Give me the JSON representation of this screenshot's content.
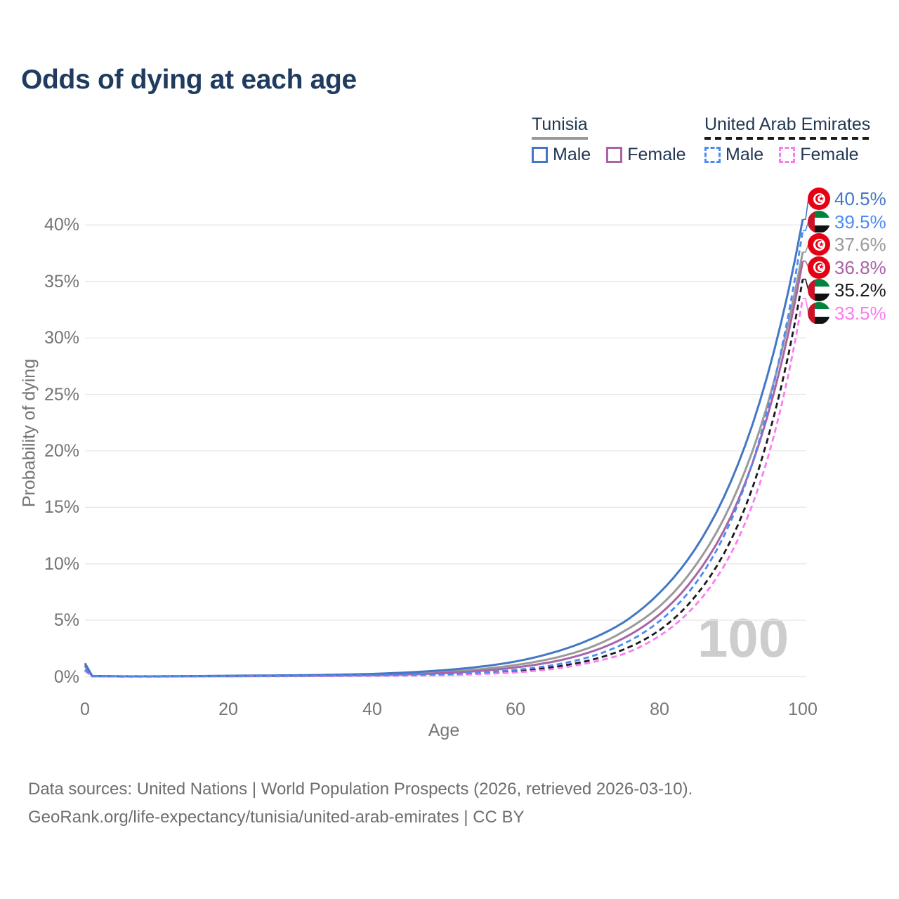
{
  "title": "Odds of dying at each age",
  "legend": {
    "groups": [
      {
        "name": "Tunisia",
        "line_style": "solid",
        "line_color": "#9a9a9a",
        "items": [
          {
            "label": "Male",
            "color": "#4377c4",
            "dashed": false
          },
          {
            "label": "Female",
            "color": "#aa64a6",
            "dashed": false
          }
        ]
      },
      {
        "name": "United Arab Emirates",
        "line_style": "dashed",
        "line_color": "#1a1a1a",
        "items": [
          {
            "label": "Male",
            "color": "#4b8bf4",
            "dashed": true
          },
          {
            "label": "Female",
            "color": "#fb7bf2",
            "dashed": true
          }
        ]
      }
    ]
  },
  "axes": {
    "y_title": "Probability of dying",
    "x_title": "Age",
    "y_ticks": [
      {
        "v": 0,
        "label": "0%"
      },
      {
        "v": 5,
        "label": "5%"
      },
      {
        "v": 10,
        "label": "10%"
      },
      {
        "v": 15,
        "label": "15%"
      },
      {
        "v": 20,
        "label": "20%"
      },
      {
        "v": 25,
        "label": "25%"
      },
      {
        "v": 30,
        "label": "30%"
      },
      {
        "v": 35,
        "label": "35%"
      },
      {
        "v": 40,
        "label": "40%"
      }
    ],
    "x_ticks": [
      {
        "v": 0,
        "label": "0"
      },
      {
        "v": 20,
        "label": "20"
      },
      {
        "v": 40,
        "label": "40"
      },
      {
        "v": 60,
        "label": "60"
      },
      {
        "v": 80,
        "label": "80"
      },
      {
        "v": 100,
        "label": "100"
      }
    ]
  },
  "watermark": "100",
  "end_labels": [
    {
      "series_id": "tunisia-male",
      "text": "40.5%",
      "color": "#4377c4",
      "flag": "tn"
    },
    {
      "series_id": "uae-male",
      "text": "39.5%",
      "color": "#4b8bf4",
      "flag": "ae"
    },
    {
      "series_id": "tunisia-both",
      "text": "37.6%",
      "color": "#9a9a9a",
      "flag": "tn"
    },
    {
      "series_id": "tunisia-female",
      "text": "36.8%",
      "color": "#aa64a6",
      "flag": "tn"
    },
    {
      "series_id": "uae-both",
      "text": "35.2%",
      "color": "#1a1a1a",
      "flag": "ae"
    },
    {
      "series_id": "uae-female",
      "text": "33.5%",
      "color": "#fb7bf2",
      "flag": "ae"
    }
  ],
  "flags": {
    "tn": {
      "red": "#e70013",
      "white": "#ffffff"
    },
    "ae": {
      "red": "#cd1126",
      "green": "#00843d",
      "white": "#ffffff",
      "black": "#111111"
    }
  },
  "footer": {
    "line1": "Data sources: United Nations | World Population Prospects (2026, retrieved 2026-03-10).",
    "line2": "GeoRank.org/life-expectancy/tunisia/united-arab-emirates | CC BY"
  },
  "chart_data": {
    "type": "line",
    "title": "Odds of dying at each age",
    "xlabel": "Age",
    "ylabel": "Probability of dying",
    "xlim": [
      0,
      100
    ],
    "ylim": [
      0,
      42
    ],
    "grid": true,
    "legend_position": "top-right",
    "unit": "percent",
    "x": [
      0,
      1,
      5,
      10,
      15,
      20,
      25,
      30,
      35,
      40,
      45,
      50,
      55,
      60,
      65,
      70,
      75,
      80,
      85,
      90,
      95,
      100
    ],
    "series": [
      {
        "id": "tunisia-both",
        "name": "Tunisia (both sexes)",
        "color": "#9a9a9a",
        "dashed": false,
        "values": [
          1.05,
          0.06,
          0.035,
          0.03,
          0.05,
          0.07,
          0.09,
          0.11,
          0.14,
          0.19,
          0.28,
          0.43,
          0.66,
          1.03,
          1.6,
          2.5,
          4.0,
          6.2,
          9.8,
          15.3,
          23.9,
          37.6
        ]
      },
      {
        "id": "tunisia-female",
        "name": "Tunisia Female",
        "color": "#aa64a6",
        "dashed": false,
        "values": [
          0.95,
          0.05,
          0.03,
          0.03,
          0.04,
          0.05,
          0.06,
          0.08,
          0.1,
          0.13,
          0.2,
          0.32,
          0.51,
          0.82,
          1.3,
          2.1,
          3.4,
          5.5,
          8.9,
          14.2,
          22.9,
          36.8
        ]
      },
      {
        "id": "tunisia-male",
        "name": "Tunisia Male",
        "color": "#4377c4",
        "dashed": false,
        "values": [
          1.2,
          0.07,
          0.04,
          0.04,
          0.06,
          0.09,
          0.11,
          0.13,
          0.18,
          0.25,
          0.38,
          0.58,
          0.88,
          1.35,
          2.1,
          3.2,
          4.8,
          7.4,
          11.3,
          17.3,
          26.5,
          40.5
        ]
      },
      {
        "id": "uae-both",
        "name": "United Arab Emirates (both sexes)",
        "color": "#1a1a1a",
        "dashed": true,
        "values": [
          0.58,
          0.04,
          0.02,
          0.02,
          0.03,
          0.05,
          0.06,
          0.07,
          0.08,
          0.1,
          0.13,
          0.18,
          0.29,
          0.48,
          0.83,
          1.4,
          2.4,
          4.1,
          7.1,
          12.1,
          20.8,
          35.2
        ]
      },
      {
        "id": "uae-female",
        "name": "United Arab Emirates Female",
        "color": "#fb7bf2",
        "dashed": true,
        "values": [
          0.52,
          0.03,
          0.02,
          0.02,
          0.02,
          0.03,
          0.04,
          0.05,
          0.06,
          0.08,
          0.1,
          0.14,
          0.23,
          0.38,
          0.67,
          1.2,
          2.0,
          3.6,
          6.3,
          10.9,
          19.1,
          33.5
        ]
      },
      {
        "id": "uae-male",
        "name": "United Arab Emirates Male",
        "color": "#4b8bf4",
        "dashed": true,
        "values": [
          0.62,
          0.04,
          0.02,
          0.02,
          0.04,
          0.06,
          0.07,
          0.08,
          0.1,
          0.12,
          0.16,
          0.22,
          0.36,
          0.6,
          1.0,
          1.7,
          2.9,
          4.9,
          8.2,
          13.8,
          23.4,
          39.5
        ]
      }
    ]
  }
}
